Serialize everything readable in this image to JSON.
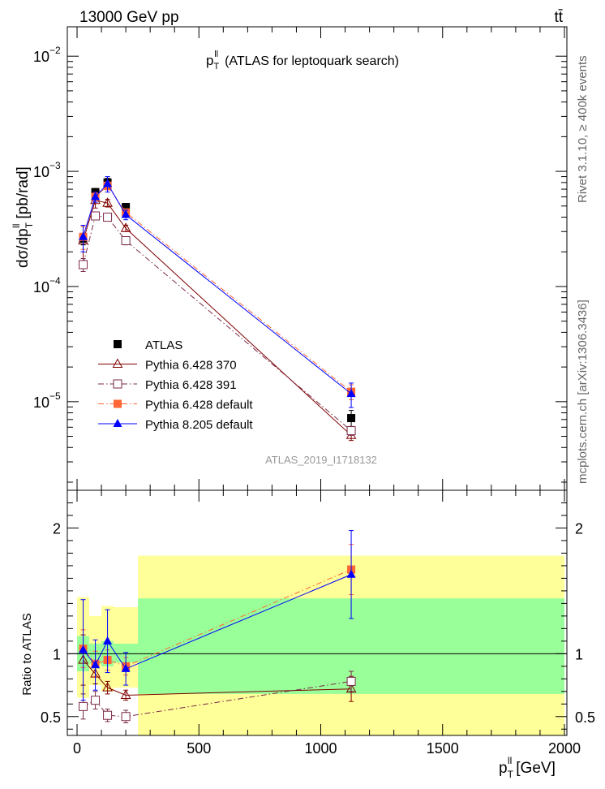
{
  "header": {
    "left": "13000 GeV pp",
    "right": "tt̄"
  },
  "side_text": {
    "rivet": "Rivet 3.1.10, ≥ 400k events",
    "site": "mcplots.cern.ch [arXiv:1306.3436]"
  },
  "chart_data": [
    {
      "type": "scatter",
      "title": "p_T^ll (ATLAS for leptoquark search)",
      "title_main": "p",
      "title_sub": "T",
      "title_sup": "ll",
      "title_rest": "(ATLAS for leptoquark search)",
      "analysis_label": "ATLAS_2019_I1718132",
      "ylabel_prefix": "dσ/dp",
      "ylabel_sub": "T",
      "ylabel_sup": "ll",
      "ylabel_suffix": "[pb/rad]",
      "yscale": "log",
      "xlim": [
        -40,
        2010
      ],
      "ylim": [
        1.7e-06,
        0.018
      ],
      "y_tick_labels": [
        {
          "value": 1e-05,
          "mantissa": "10",
          "exp": "−5"
        },
        {
          "value": 0.0001,
          "mantissa": "10",
          "exp": "−4"
        },
        {
          "value": 0.001,
          "mantissa": "10",
          "exp": "−3"
        },
        {
          "value": 0.01,
          "mantissa": "10",
          "exp": "−2"
        }
      ],
      "legend_position": "lower-left",
      "series": [
        {
          "name": "ATLAS",
          "color": "#000000",
          "marker": "filled-square",
          "x": [
            25,
            75,
            125,
            200,
            1125
          ],
          "y": [
            0.00026,
            0.00066,
            0.0008,
            0.00049,
            7.2e-06
          ],
          "err": [
            3e-05,
            5e-05,
            7e-05,
            3e-05,
            1.2e-06
          ]
        },
        {
          "name": "Pythia 6.428 370",
          "color": "#800000",
          "marker": "open-triangle",
          "line": "solid",
          "x": [
            25,
            75,
            125,
            200,
            1125
          ],
          "y": [
            0.00025,
            0.00056,
            0.00053,
            0.00032,
            5.1e-06
          ],
          "err": [
            9e-05,
            8e-05,
            4e-05,
            2e-05,
            5e-07
          ]
        },
        {
          "name": "Pythia 6.428 391",
          "color": "#7a2a4a",
          "marker": "open-square",
          "line": "dashdot",
          "x": [
            25,
            75,
            125,
            200,
            1125
          ],
          "y": [
            0.000155,
            0.00041,
            0.0004,
            0.00025,
            5.6e-06
          ],
          "err": [
            2e-05,
            3e-05,
            3e-05,
            2e-05,
            5e-07
          ]
        },
        {
          "name": "Pythia 6.428 default",
          "color": "#ff6633",
          "marker": "filled-square",
          "line": "dashdot",
          "x": [
            25,
            75,
            125,
            200,
            1125
          ],
          "y": [
            0.00027,
            0.0006,
            0.00075,
            0.00044,
            1.22e-05
          ],
          "err": [
            6e-05,
            6e-05,
            6e-05,
            3e-05,
            1.8e-06
          ]
        },
        {
          "name": "Pythia 8.205 default",
          "color": "#0000ff",
          "marker": "filled-triangle",
          "line": "solid",
          "x": [
            25,
            75,
            125,
            200,
            1125
          ],
          "y": [
            0.00027,
            0.0006,
            0.00078,
            0.00042,
            1.17e-05
          ],
          "err": [
            7e-05,
            6e-05,
            0.00012,
            4e-05,
            2.8e-06
          ]
        }
      ]
    },
    {
      "type": "scatter",
      "ylabel": "Ratio to ATLAS",
      "xlabel_main": "p",
      "xlabel_sub": "T",
      "xlabel_sup": "ll",
      "xlabel_suffix": "[GeV]",
      "xlim": [
        -40,
        2010
      ],
      "ylim": [
        0.35,
        2.3
      ],
      "x_tick_labels": [
        {
          "value": 0,
          "label": "0"
        },
        {
          "value": 500,
          "label": "500"
        },
        {
          "value": 1000,
          "label": "1000"
        },
        {
          "value": 1500,
          "label": "1500"
        },
        {
          "value": 2000,
          "label": "2000"
        }
      ],
      "y_tick_labels": [
        {
          "value": 0.5,
          "label": "0.5"
        },
        {
          "value": 1,
          "label": "1"
        },
        {
          "value": 2,
          "label": "2"
        }
      ],
      "reference_line": 1,
      "bands": [
        {
          "x0": 0,
          "x1": 50,
          "green": [
            0.86,
            1.14
          ],
          "yellow": [
            0.65,
            1.45
          ]
        },
        {
          "x0": 50,
          "x1": 100,
          "green": [
            0.92,
            1.08
          ],
          "yellow": [
            0.75,
            1.3
          ]
        },
        {
          "x0": 100,
          "x1": 150,
          "green": [
            0.9,
            1.1
          ],
          "yellow": [
            0.7,
            1.38
          ]
        },
        {
          "x0": 150,
          "x1": 250,
          "green": [
            0.93,
            1.08
          ],
          "yellow": [
            0.73,
            1.37
          ]
        },
        {
          "x0": 250,
          "x1": 2000,
          "green": [
            0.68,
            1.44
          ],
          "yellow": [
            0.35,
            1.78
          ]
        }
      ],
      "series": [
        {
          "name": "Pythia 6.428 370",
          "color": "#800000",
          "marker": "open-triangle",
          "line": "solid",
          "x": [
            25,
            75,
            125,
            200,
            1125
          ],
          "y": [
            0.95,
            0.84,
            0.73,
            0.67,
            0.72
          ],
          "err": [
            0.2,
            0.08,
            0.05,
            0.04,
            0.1
          ]
        },
        {
          "name": "Pythia 6.428 391",
          "color": "#7a2a4a",
          "marker": "open-square",
          "line": "dashdot",
          "x": [
            25,
            75,
            125,
            200,
            1125
          ],
          "y": [
            0.58,
            0.63,
            0.51,
            0.5,
            0.78
          ],
          "err": [
            0.1,
            0.07,
            0.05,
            0.05,
            0.08
          ]
        },
        {
          "name": "Pythia 6.428 default",
          "color": "#ff6633",
          "marker": "filled-square",
          "line": "dashdot",
          "x": [
            25,
            75,
            125,
            200,
            1125
          ],
          "y": [
            1.04,
            0.92,
            0.95,
            0.9,
            1.67
          ],
          "err": [
            0.15,
            0.1,
            0.08,
            0.07,
            0.2
          ]
        },
        {
          "name": "Pythia 8.205 default",
          "color": "#0000ff",
          "marker": "filled-triangle",
          "line": "solid",
          "x": [
            25,
            75,
            125,
            200,
            1125
          ],
          "y": [
            1.03,
            0.91,
            1.1,
            0.88,
            1.63
          ],
          "err": [
            0.4,
            0.2,
            0.25,
            0.13,
            0.35
          ]
        }
      ]
    }
  ]
}
